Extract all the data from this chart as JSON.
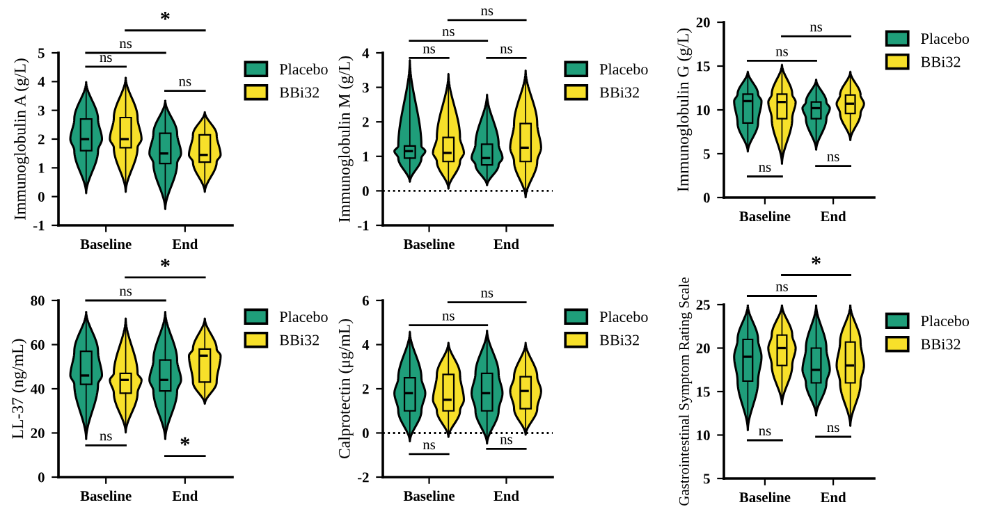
{
  "chart_data": [
    {
      "type": "box",
      "ylabel": "Immunoglobulin A (g/L)",
      "categories": [
        "Baseline",
        "End"
      ],
      "ylim": [
        -1,
        5
      ],
      "yticks": [
        -1,
        0,
        1,
        2,
        3,
        4,
        5
      ],
      "legend": "right",
      "annotations": [
        "ns",
        "ns",
        "ns",
        "*"
      ],
      "series": [
        {
          "name": "Placebo",
          "color": "#1f9e7a",
          "boxes": [
            {
              "low": 0.1,
              "q1": 1.6,
              "median": 2.0,
              "q3": 2.7,
              "high": 4.0
            },
            {
              "low": -0.45,
              "q1": 1.15,
              "median": 1.5,
              "q3": 2.2,
              "high": 3.35
            }
          ]
        },
        {
          "name": "BBi32",
          "color": "#f7e02a",
          "boxes": [
            {
              "low": 0.15,
              "q1": 1.7,
              "median": 2.0,
              "q3": 2.75,
              "high": 4.15
            },
            {
              "low": 0.15,
              "q1": 1.2,
              "median": 1.45,
              "q3": 2.15,
              "high": 2.95
            }
          ]
        }
      ]
    },
    {
      "type": "box",
      "ylabel": "Immunoglobulin M (g/L)",
      "categories": [
        "Baseline",
        "End"
      ],
      "ylim": [
        -1,
        4
      ],
      "yticks": [
        -1,
        0,
        1,
        2,
        3,
        4
      ],
      "legend": "right",
      "annotations": [
        "ns",
        "ns",
        "ns",
        "ns"
      ],
      "ref_lines": [
        {
          "axis": "y",
          "value": 0,
          "line_style": "dotted",
          "color": "#000000"
        }
      ],
      "series": [
        {
          "name": "Placebo",
          "color": "#1f9e7a",
          "boxes": [
            {
              "low": 0.25,
              "q1": 0.95,
              "median": 1.15,
              "q3": 1.3,
              "high": 3.8
            },
            {
              "low": 0.15,
              "q1": 0.75,
              "median": 0.95,
              "q3": 1.35,
              "high": 2.8
            }
          ]
        },
        {
          "name": "BBi32",
          "color": "#f7e02a",
          "boxes": [
            {
              "low": 0.05,
              "q1": 0.85,
              "median": 1.1,
              "q3": 1.55,
              "high": 3.4
            },
            {
              "low": -0.2,
              "q1": 0.85,
              "median": 1.25,
              "q3": 1.95,
              "high": 3.5
            }
          ]
        }
      ]
    },
    {
      "type": "box",
      "ylabel": "Immunoglobulin G (g/L)",
      "categories": [
        "Baseline",
        "End"
      ],
      "ylim": [
        0,
        20
      ],
      "yticks": [
        0,
        5,
        10,
        15,
        20
      ],
      "legend": "right",
      "annotations": [
        "ns",
        "ns",
        "ns",
        "ns"
      ],
      "series": [
        {
          "name": "Placebo",
          "color": "#1f9e7a",
          "boxes": [
            {
              "low": 5.2,
              "q1": 8.5,
              "median": 11.0,
              "q3": 11.8,
              "high": 14.4
            },
            {
              "low": 5.4,
              "q1": 9.0,
              "median": 10.2,
              "q3": 10.9,
              "high": 13.5
            }
          ]
        },
        {
          "name": "BBi32",
          "color": "#f7e02a",
          "boxes": [
            {
              "low": 3.8,
              "q1": 9.0,
              "median": 10.9,
              "q3": 11.8,
              "high": 15.2
            },
            {
              "low": 6.5,
              "q1": 9.6,
              "median": 10.7,
              "q3": 11.7,
              "high": 14.4
            }
          ]
        }
      ]
    },
    {
      "type": "box",
      "ylabel": "LL-37 (ng/mL)",
      "categories": [
        "Baseline",
        "End"
      ],
      "ylim": [
        0,
        80
      ],
      "yticks": [
        0,
        20,
        40,
        60,
        80
      ],
      "legend": "right",
      "annotations": [
        "ns",
        "*",
        "ns",
        "*"
      ],
      "series": [
        {
          "name": "Placebo",
          "color": "#1f9e7a",
          "boxes": [
            {
              "low": 17,
              "q1": 42,
              "median": 46,
              "q3": 57,
              "high": 75
            },
            {
              "low": 17,
              "q1": 39,
              "median": 44,
              "q3": 53,
              "high": 75
            }
          ]
        },
        {
          "name": "BBi32",
          "color": "#f7e02a",
          "boxes": [
            {
              "low": 20,
              "q1": 38,
              "median": 44,
              "q3": 47,
              "high": 72
            },
            {
              "low": 33,
              "q1": 43,
              "median": 55,
              "q3": 58,
              "high": 72
            }
          ]
        }
      ]
    },
    {
      "type": "box",
      "ylabel": "Calprotectin (μg/mL)",
      "categories": [
        "Baseline",
        "End"
      ],
      "ylim": [
        -2,
        6
      ],
      "yticks": [
        -2,
        0,
        2,
        4,
        6
      ],
      "legend": "right",
      "annotations": [
        "ns",
        "ns",
        "ns",
        "ns"
      ],
      "ref_lines": [
        {
          "axis": "y",
          "value": 0,
          "line_style": "dotted",
          "color": "#000000"
        }
      ],
      "series": [
        {
          "name": "Placebo",
          "color": "#1f9e7a",
          "boxes": [
            {
              "low": -0.4,
              "q1": 1.0,
              "median": 1.8,
              "q3": 2.5,
              "high": 4.6
            },
            {
              "low": -0.5,
              "q1": 1.0,
              "median": 1.8,
              "q3": 2.7,
              "high": 4.65
            }
          ]
        },
        {
          "name": "BBi32",
          "color": "#f7e02a",
          "boxes": [
            {
              "low": -0.2,
              "q1": 1.0,
              "median": 1.5,
              "q3": 2.65,
              "high": 4.1
            },
            {
              "low": -0.1,
              "q1": 1.1,
              "median": 1.9,
              "q3": 2.55,
              "high": 4.1
            }
          ]
        }
      ]
    },
    {
      "type": "box",
      "ylabel": "Gastrointestinal Symptom Rating Scale",
      "categories": [
        "Baseline",
        "End"
      ],
      "ylim": [
        5,
        25
      ],
      "yticks": [
        5,
        10,
        15,
        20,
        25
      ],
      "legend": "right",
      "annotations": [
        "ns",
        "ns",
        "ns",
        "*"
      ],
      "series": [
        {
          "name": "Placebo",
          "color": "#1f9e7a",
          "boxes": [
            {
              "low": 10.5,
              "q1": 16.2,
              "median": 19.0,
              "q3": 21.0,
              "high": 25
            },
            {
              "low": 12.2,
              "q1": 16.0,
              "median": 17.5,
              "q3": 20.0,
              "high": 25
            }
          ]
        },
        {
          "name": "BBi32",
          "color": "#f7e02a",
          "boxes": [
            {
              "low": 13.5,
              "q1": 18.0,
              "median": 20.0,
              "q3": 21.5,
              "high": 25
            },
            {
              "low": 11.0,
              "q1": 16.0,
              "median": 18.0,
              "q3": 20.7,
              "high": 25
            }
          ]
        }
      ]
    }
  ]
}
